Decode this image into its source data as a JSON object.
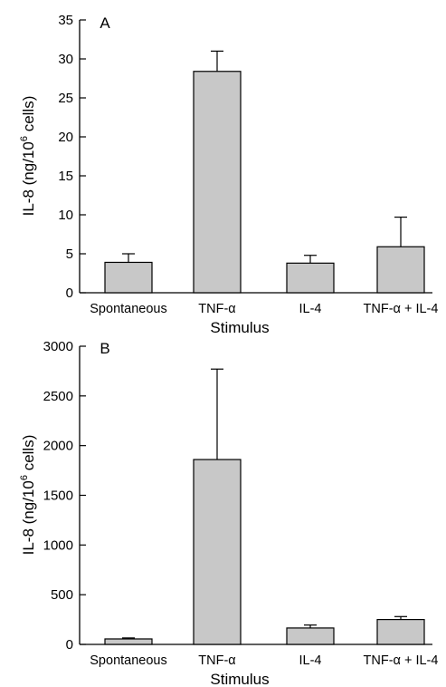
{
  "colors": {
    "bar_fill": "#c8c8c8",
    "stroke": "#000000"
  },
  "chart_data": [
    {
      "type": "bar",
      "panel": "A",
      "ylabel_main": "IL-8 (ng/10",
      "ylabel_sup": "6",
      "ylabel_tail": " cells)",
      "xlabel": "Stimulus",
      "ylim": [
        0,
        35
      ],
      "yticks": [
        0,
        5,
        10,
        15,
        20,
        25,
        30,
        35
      ],
      "categories": [
        "Spontaneous",
        "TNF-α",
        "IL-4",
        "TNF-α + IL-4"
      ],
      "values": [
        3.9,
        28.4,
        3.8,
        5.9
      ],
      "errors": [
        1.1,
        2.6,
        1.0,
        3.8
      ],
      "grid": false
    },
    {
      "type": "bar",
      "panel": "B",
      "ylabel_main": "IL-8 (ng/10",
      "ylabel_sup": "6",
      "ylabel_tail": " cells)",
      "xlabel": "Stimulus",
      "ylim": [
        0,
        3000
      ],
      "yticks": [
        0,
        500,
        1000,
        1500,
        2000,
        2500,
        3000
      ],
      "categories": [
        "Spontaneous",
        "TNF-α",
        "IL-4",
        "TNF-α + IL-4"
      ],
      "values": [
        55,
        1860,
        165,
        250
      ],
      "errors": [
        10,
        910,
        30,
        30
      ],
      "grid": false
    }
  ]
}
